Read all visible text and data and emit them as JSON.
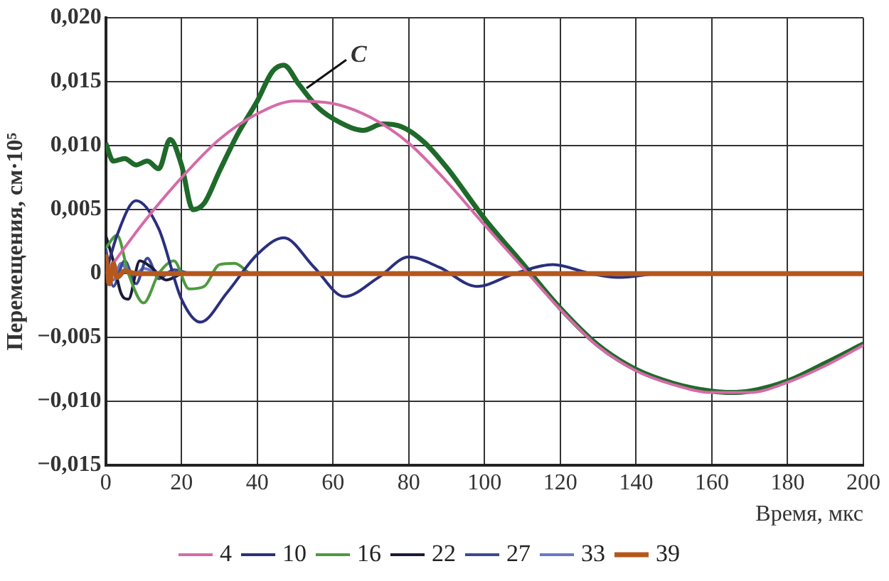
{
  "chart_data": {
    "type": "line",
    "xlabel": "Время, мкс",
    "ylabel": "Перемещения, см·10⁵",
    "xlim": [
      0,
      200
    ],
    "xticks": [
      0,
      20,
      40,
      60,
      80,
      100,
      120,
      140,
      160,
      180,
      200
    ],
    "ylim": [
      -0.015,
      0.02
    ],
    "yticks": [
      {
        "value": -0.015,
        "label": "−0,015"
      },
      {
        "value": -0.01,
        "label": "−0,010"
      },
      {
        "value": -0.005,
        "label": "−0,005"
      },
      0,
      {
        "value": 0.005,
        "label": "0,005"
      },
      {
        "value": 0.01,
        "label": "0,010"
      },
      {
        "value": 0.015,
        "label": "0,015"
      },
      {
        "value": 0.02,
        "label": "0,020"
      }
    ],
    "grid": true,
    "legend": "bottom",
    "marker": "none",
    "line_style": "solid",
    "annotations": [
      {
        "text": "C",
        "x": 53,
        "y": 0.0145
      }
    ],
    "series": [
      {
        "name": "4",
        "color": "#d66aa8",
        "x": [
          0,
          10,
          20,
          30,
          40,
          50,
          60,
          70,
          80,
          90,
          100,
          110,
          120,
          130,
          140,
          150,
          160,
          170,
          180,
          190,
          200
        ],
        "values": [
          0,
          0.004,
          0.0075,
          0.0105,
          0.0125,
          0.0135,
          0.0133,
          0.0122,
          0.0102,
          0.0072,
          0.0038,
          0.0005,
          -0.0028,
          -0.0057,
          -0.0076,
          -0.0087,
          -0.0093,
          -0.0093,
          -0.0085,
          -0.0072,
          -0.0056
        ]
      },
      {
        "name": "10",
        "color": "#2b2f7e",
        "x": [
          0,
          3,
          8,
          14,
          20,
          25,
          32,
          40,
          47,
          55,
          63,
          72,
          80,
          88,
          98,
          108,
          118,
          128,
          135,
          145
        ],
        "values": [
          0,
          0.003,
          0.0057,
          0.0035,
          -0.002,
          -0.0038,
          -0.0015,
          0.0015,
          0.0028,
          0.0005,
          -0.0018,
          -0.0003,
          0.0013,
          0.0005,
          -0.001,
          0,
          0.0007,
          0,
          -0.0003,
          0
        ]
      },
      {
        "name": "16",
        "color": "#4e9a3e",
        "x": [
          0,
          3,
          6,
          10,
          14,
          18,
          22,
          26,
          30,
          34,
          38
        ],
        "values": [
          0.002,
          0.003,
          0,
          -0.0023,
          0,
          0.001,
          -0.0012,
          -0.001,
          0.0007,
          0.0008,
          0
        ]
      },
      {
        "name": "22",
        "color": "#1a1a3a",
        "x": [
          0,
          2,
          4,
          6,
          9,
          12,
          16,
          20
        ],
        "values": [
          0.003,
          0.001,
          -0.0015,
          -0.002,
          0.001,
          0.0005,
          -0.0005,
          0
        ]
      },
      {
        "name": "27",
        "color": "#3b4a96",
        "x": [
          0,
          2,
          5,
          8,
          11,
          14,
          18,
          22
        ],
        "values": [
          0.002,
          -0.001,
          0.001,
          -0.0008,
          0.0012,
          -0.0004,
          0.0003,
          0
        ]
      },
      {
        "name": "33",
        "color": "#6a78c8",
        "x": [
          0,
          2,
          4,
          7,
          10,
          14
        ],
        "values": [
          0.0015,
          -0.0005,
          0.0008,
          -0.0003,
          0.0004,
          0
        ]
      },
      {
        "name": "39",
        "color": "#b5581e",
        "x": [
          0,
          1,
          2,
          3,
          5,
          8,
          200
        ],
        "values": [
          0.0015,
          -0.0008,
          0.0008,
          -0.0003,
          0.0002,
          0,
          0
        ]
      },
      {
        "color": "#1f6a2a",
        "x": [
          0,
          2,
          5,
          8,
          11,
          14,
          17,
          20,
          23,
          26,
          30,
          35,
          40,
          44,
          47,
          51,
          56,
          62,
          68,
          73,
          78,
          84,
          90,
          100,
          110,
          120,
          130,
          140,
          150,
          160,
          165,
          170,
          180,
          190,
          200
        ],
        "values": [
          0.0102,
          0.0088,
          0.009,
          0.0085,
          0.0088,
          0.0082,
          0.0105,
          0.0085,
          0.005,
          0.0055,
          0.008,
          0.011,
          0.0135,
          0.0158,
          0.0163,
          0.0148,
          0.013,
          0.0118,
          0.0112,
          0.0117,
          0.0115,
          0.0103,
          0.0083,
          0.0043,
          0.0008,
          -0.0027,
          -0.0056,
          -0.0075,
          -0.0086,
          -0.0092,
          -0.0093,
          -0.0092,
          -0.0084,
          -0.007,
          -0.0055
        ]
      }
    ]
  }
}
